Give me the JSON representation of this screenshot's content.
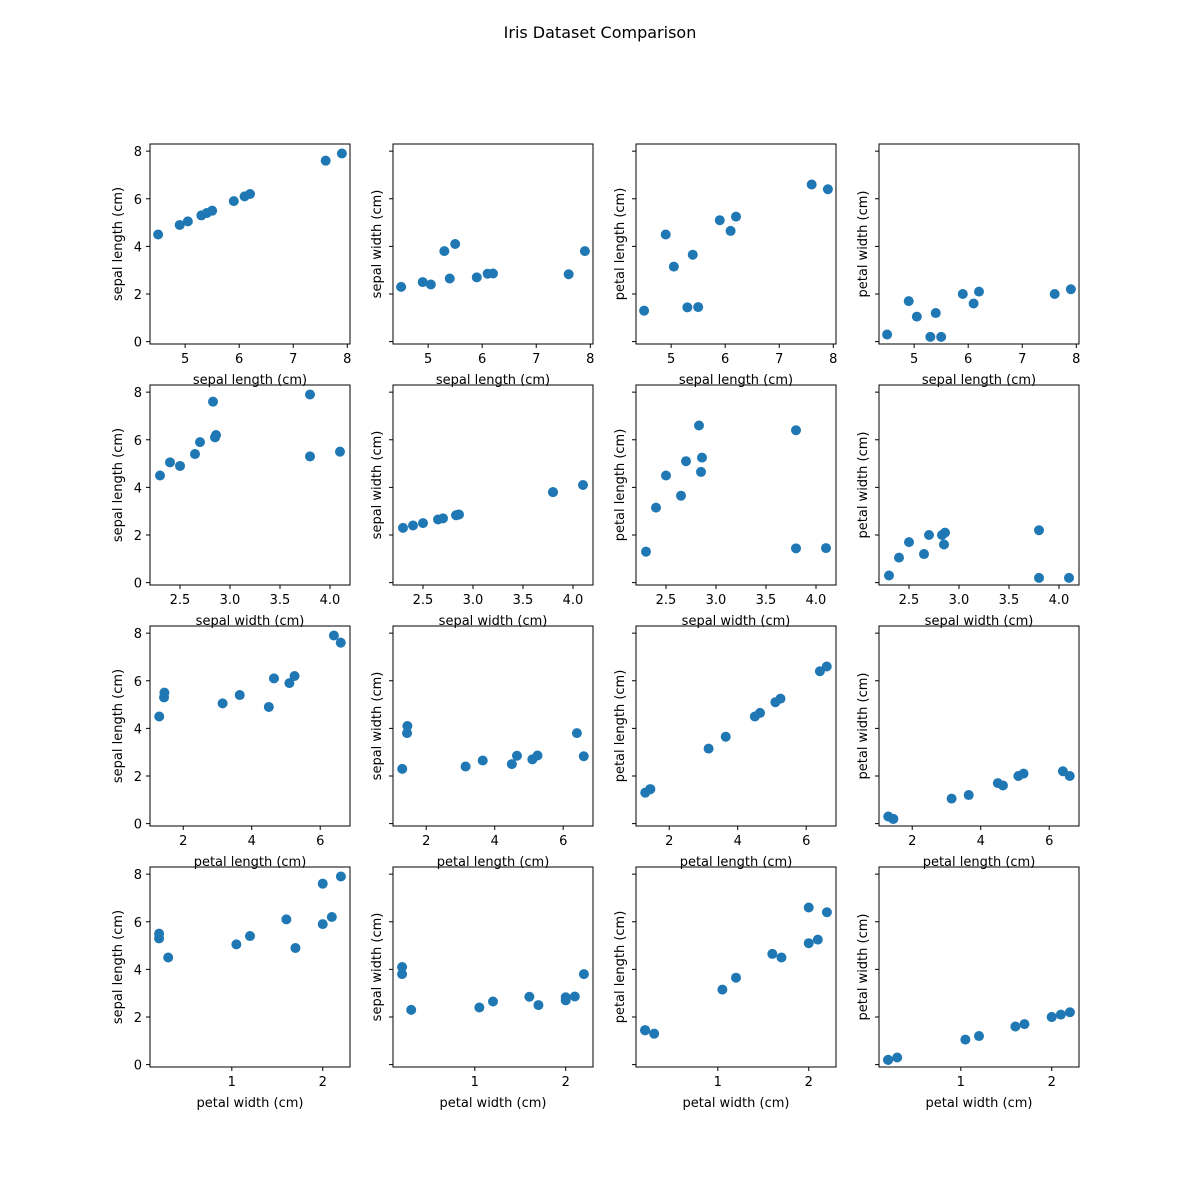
{
  "chart_data": {
    "type": "scatter",
    "title": "Iris Dataset Comparison",
    "grid": false,
    "marker_color": "#1f77b4",
    "variables": [
      "sepal length (cm)",
      "sepal width (cm)",
      "petal length (cm)",
      "petal width (cm)"
    ],
    "data": {
      "sepal length (cm)": [
        4.5,
        4.9,
        5.05,
        5.3,
        5.4,
        5.5,
        5.9,
        6.1,
        6.2,
        7.6,
        7.9
      ],
      "sepal width (cm)": [
        2.3,
        2.5,
        2.4,
        3.8,
        2.65,
        4.1,
        2.7,
        2.85,
        2.86,
        2.83,
        3.8
      ],
      "petal length (cm)": [
        1.3,
        4.5,
        3.15,
        1.44,
        3.65,
        1.45,
        5.1,
        4.65,
        5.25,
        6.6,
        6.4
      ],
      "petal width (cm)": [
        0.3,
        1.7,
        1.05,
        0.2,
        1.2,
        0.2,
        2.0,
        1.6,
        2.1,
        2.0,
        2.2
      ]
    },
    "axes_ranges": {
      "sepal length (cm)": [
        4.35,
        8.05
      ],
      "sepal width (cm)": [
        2.2,
        4.2
      ],
      "petal length (cm)": [
        1.03,
        6.87
      ],
      "petal width (cm)": [
        0.1,
        2.3
      ]
    },
    "shared_ylim": [
      -0.1,
      8.3
    ],
    "x_ticks": {
      "sepal length (cm)": [
        5,
        6,
        7,
        8
      ],
      "sepal width (cm)": [
        2.5,
        3.0,
        3.5,
        4.0
      ],
      "petal length (cm)": [
        2,
        4,
        6
      ],
      "petal width (cm)": [
        1,
        2
      ]
    },
    "x_tick_labels": {
      "sepal length (cm)": [
        "5",
        "6",
        "7",
        "8"
      ],
      "sepal width (cm)": [
        "2.5",
        "3.0",
        "3.5",
        "4.0"
      ],
      "petal length (cm)": [
        "2",
        "4",
        "6"
      ],
      "petal width (cm)": [
        "1",
        "2"
      ]
    },
    "y_ticks": [
      0,
      2,
      4,
      6,
      8
    ],
    "y_tick_labels": [
      "0",
      "2",
      "4",
      "6",
      "8"
    ]
  }
}
